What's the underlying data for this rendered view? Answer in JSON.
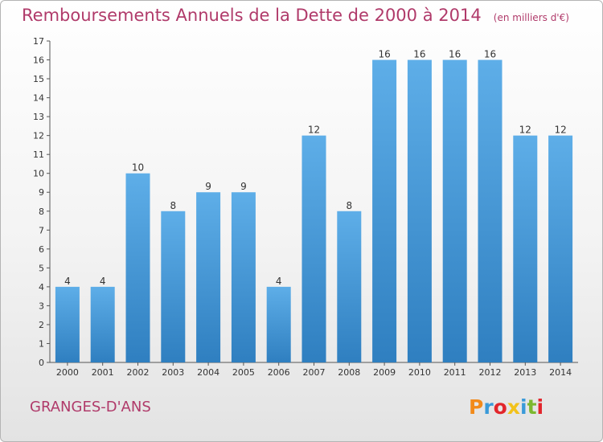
{
  "header": {
    "title": "Remboursements Annuels de la Dette de 2000 à 2014",
    "unit": "(en milliers d'€)"
  },
  "footer": {
    "commune": "GRANGES-D'ANS",
    "logo_text": "Proxiti"
  },
  "colors": {
    "title": "#b03a6a",
    "bar_top": "#5eaee8",
    "bar_bottom": "#2f7fc0",
    "logo": [
      "#f28a1a",
      "#3a9ad9",
      "#e2262c",
      "#f2c21b",
      "#3a9ad9",
      "#7cb82f",
      "#e2262c"
    ]
  },
  "chart_data": {
    "type": "bar",
    "title": "Remboursements Annuels de la Dette de 2000 à 2014",
    "xlabel": "",
    "ylabel": "",
    "categories": [
      "2000",
      "2001",
      "2002",
      "2003",
      "2004",
      "2005",
      "2006",
      "2007",
      "2008",
      "2009",
      "2010",
      "2011",
      "2012",
      "2013",
      "2014"
    ],
    "values": [
      4,
      4,
      10,
      8,
      9,
      9,
      4,
      12,
      8,
      16,
      16,
      16,
      16,
      12,
      12
    ],
    "ylim": [
      0,
      17
    ],
    "yticks": [
      "0",
      "1",
      "2",
      "3",
      "4",
      "5",
      "6",
      "7",
      "8",
      "9",
      "10",
      "11",
      "12",
      "13",
      "14",
      "15",
      "16",
      "17"
    ],
    "grid": false,
    "legend": "none"
  }
}
